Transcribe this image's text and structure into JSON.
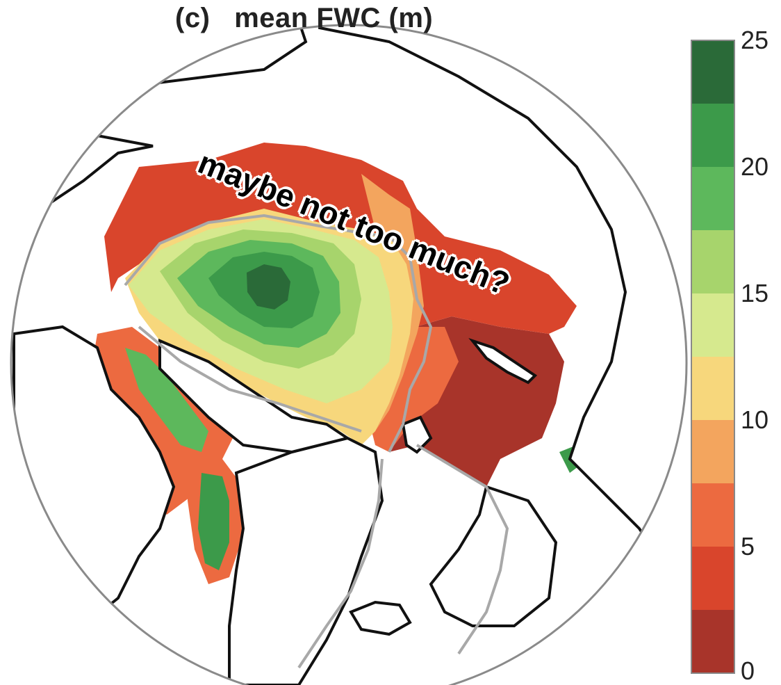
{
  "title": "(c)   mean FWC (m)",
  "annotation": "maybe not too much?",
  "colorbar": {
    "ticks": [
      "0",
      "5",
      "10",
      "15",
      "20",
      "25"
    ],
    "range": [
      0,
      25
    ],
    "bins": [
      {
        "from": 0,
        "to": 2.5,
        "color": "#a8342a"
      },
      {
        "from": 2.5,
        "to": 5,
        "color": "#d9452c"
      },
      {
        "from": 5,
        "to": 7.5,
        "color": "#ec6a40"
      },
      {
        "from": 7.5,
        "to": 10,
        "color": "#f3a55e"
      },
      {
        "from": 10,
        "to": 12.5,
        "color": "#f7d77c"
      },
      {
        "from": 12.5,
        "to": 15,
        "color": "#d6e98e"
      },
      {
        "from": 15,
        "to": 17.5,
        "color": "#a7d46c"
      },
      {
        "from": 17.5,
        "to": 20,
        "color": "#5db85c"
      },
      {
        "from": 20,
        "to": 22.5,
        "color": "#3c9a4a"
      },
      {
        "from": 22.5,
        "to": 25,
        "color": "#2a6a38"
      }
    ]
  },
  "colors": {
    "land_outline": "#111111",
    "shelf_contour": "#a8a8a8",
    "map_border": "#8a8a8a"
  }
}
